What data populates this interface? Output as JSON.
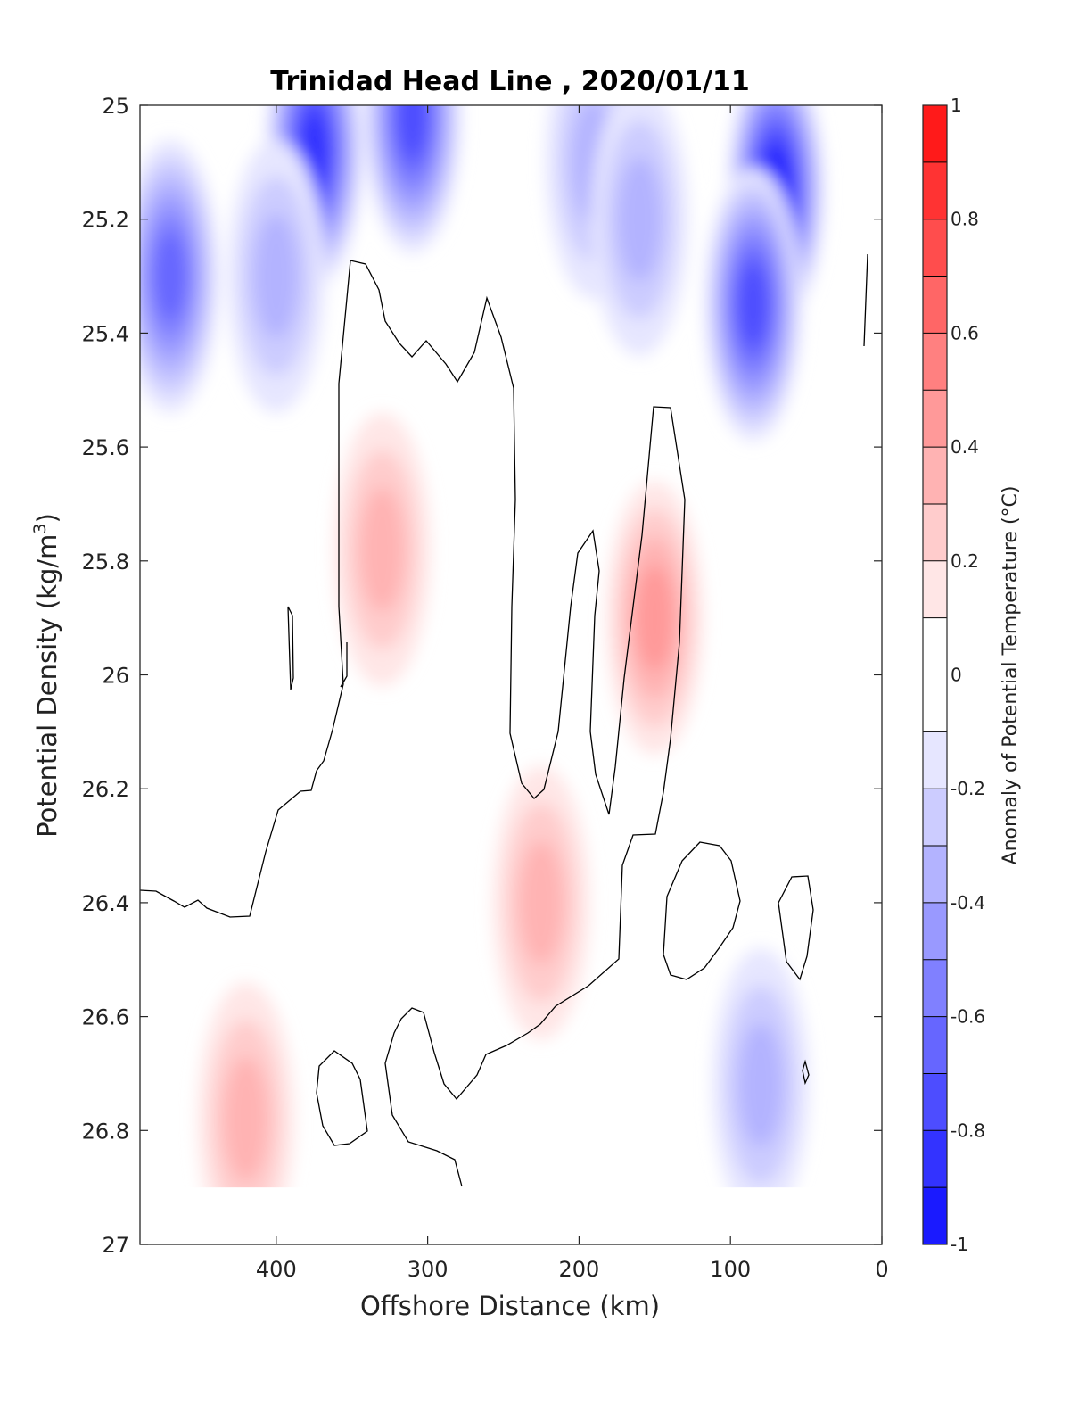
{
  "chart_data": {
    "type": "heatmap",
    "title": "Trinidad Head Line , 2020/01/11",
    "xlabel": "Offshore Distance (km)",
    "ylabel": "Potential Density (kg/m",
    "ylabel_sup": "3",
    "ylabel_end": ")",
    "xlim": [
      490,
      0
    ],
    "ylim": [
      27,
      25
    ],
    "y_reversed": true,
    "x_ticks": [
      400,
      300,
      200,
      100,
      0
    ],
    "y_ticks": [
      25,
      25.2,
      25.4,
      25.6,
      25.8,
      26,
      26.2,
      26.4,
      26.6,
      26.8,
      27
    ],
    "y_tick_labels": [
      "25",
      "25.2",
      "25.4",
      "25.6",
      "25.8",
      "26",
      "26.2",
      "26.4",
      "26.6",
      "26.8",
      "27"
    ],
    "colorbar": {
      "label": "Anomaly of Potential Temperature (°C)",
      "range": [
        -1,
        1
      ],
      "tick_values": [
        1,
        0.8,
        0.6,
        0.4,
        0.2,
        0,
        -0.2,
        -0.4,
        -0.6,
        -0.8,
        -1
      ],
      "tick_labels": [
        "1",
        "0.8",
        "0.6",
        "0.4",
        "0.2",
        "0",
        "-0.2",
        "-0.4",
        "-0.6",
        "-0.8",
        "-1"
      ],
      "levels": [
        -1,
        -0.9,
        -0.8,
        -0.7,
        -0.6,
        -0.5,
        -0.4,
        -0.3,
        -0.2,
        -0.1,
        0.1,
        0.2,
        0.3,
        0.4,
        0.5,
        0.6,
        0.7,
        0.8,
        0.9,
        1
      ],
      "colors": [
        "#0000ff",
        "#1a1aff",
        "#3333ff",
        "#4d4dff",
        "#6666ff",
        "#8080ff",
        "#9999ff",
        "#b3b3ff",
        "#ccccff",
        "#e6e6ff",
        "#ffffff",
        "#ffe6e6",
        "#ffcccc",
        "#ffb3b3",
        "#ff9999",
        "#ff8080",
        "#ff6666",
        "#ff4d4d",
        "#ff3333",
        "#ff1a1a",
        "#ff0000"
      ]
    },
    "field_extent": {
      "x": [
        490,
        10
      ],
      "y": [
        25,
        26.9
      ]
    },
    "anomaly_features": [
      {
        "x": 330,
        "y": 25.78,
        "value": 0.35
      },
      {
        "x": 150,
        "y": 25.9,
        "value": 0.4
      },
      {
        "x": 225,
        "y": 26.4,
        "value": 0.35
      },
      {
        "x": 420,
        "y": 26.78,
        "value": 0.35
      },
      {
        "x": 70,
        "y": 25.15,
        "value": -0.9
      },
      {
        "x": 85,
        "y": 25.35,
        "value": -0.7
      },
      {
        "x": 375,
        "y": 25.08,
        "value": -0.8
      },
      {
        "x": 310,
        "y": 25.02,
        "value": -0.65
      },
      {
        "x": 470,
        "y": 25.3,
        "value": -0.55
      },
      {
        "x": 400,
        "y": 25.3,
        "value": -0.35
      },
      {
        "x": 80,
        "y": 26.72,
        "value": -0.35
      },
      {
        "x": 190,
        "y": 25.1,
        "value": -0.25
      },
      {
        "x": 160,
        "y": 25.2,
        "value": -0.3
      }
    ]
  }
}
